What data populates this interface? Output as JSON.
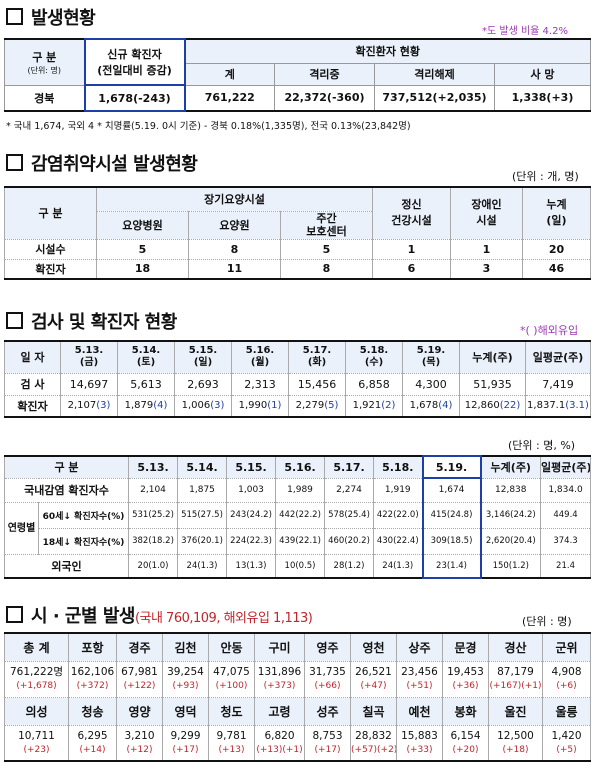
{
  "sec1": {
    "title": "발생현황",
    "ratio_note": "*도 발생 비율 4.2%",
    "h_gubun": "구  분",
    "h_unit": "(단위: 명)",
    "h_new": "신규 확진자",
    "h_new_sub": "(전일대비 증감)",
    "h_status": "확진환자 현황",
    "h_total": "계",
    "h_iso": "격리중",
    "h_release": "격리해제",
    "h_death": "사  망",
    "row_label": "경북",
    "row_new": "1,678(-243)",
    "row_total": "761,222",
    "row_iso": "22,372(-360)",
    "row_release": "737,512(+2,035)",
    "row_death": "1,338(+3)",
    "footnote": "* 국내 1,674, 국외 4  * 치명률(5.19. 0시 기준) - 경북 0.18%(1,335명), 전국 0.13%(23,842명)"
  },
  "sec2": {
    "title": "감염취약시설 발생현황",
    "unit": "(단위 : 개, 명)",
    "h_gubun": "구  분",
    "h_longterm": "장기요양시설",
    "h_hospital": "요양병원",
    "h_care": "요양원",
    "h_day": "주간\n보호센터",
    "h_mental": "정신\n건강시설",
    "h_disabled": "장애인\n시설",
    "h_cum": "누계\n(일)",
    "rows": [
      {
        "label": "시설수",
        "v": [
          "5",
          "8",
          "5",
          "1",
          "1",
          "20"
        ]
      },
      {
        "label": "확진자",
        "v": [
          "18",
          "11",
          "8",
          "6",
          "3",
          "46"
        ]
      }
    ]
  },
  "sec3": {
    "title": "검사 및 확진자 현황",
    "note": "*( )해외유입",
    "h_date": "일 자",
    "dates": [
      "5.13.\n(금)",
      "5.14.\n(토)",
      "5.15.\n(일)",
      "5.16.\n(월)",
      "5.17.\n(화)",
      "5.18.\n(수)",
      "5.19.\n(목)"
    ],
    "h_cum": "누계(주)",
    "h_avg": "일평균(주)",
    "test_label": "검 사",
    "tests": [
      "14,697",
      "5,613",
      "2,693",
      "2,313",
      "15,456",
      "6,858",
      "4,300",
      "51,935",
      "7,419"
    ],
    "conf_label": "확진자",
    "conf": [
      {
        "n": "2,107",
        "f": "(3)"
      },
      {
        "n": "1,879",
        "f": "(4)"
      },
      {
        "n": "1,006",
        "f": "(3)"
      },
      {
        "n": "1,990",
        "f": "(1)"
      },
      {
        "n": "2,279",
        "f": "(5)"
      },
      {
        "n": "1,921",
        "f": "(2)"
      },
      {
        "n": "1,678",
        "f": "(4)"
      },
      {
        "n": "12,860",
        "f": "(22)"
      },
      {
        "n": "1,837.1",
        "f": "(3.1)"
      }
    ]
  },
  "sec4": {
    "unit": "(단위 : 명, %)",
    "h_gubun": "구  분",
    "dates": [
      "5.13.",
      "5.14.",
      "5.15.",
      "5.16.",
      "5.17.",
      "5.18.",
      "5.19."
    ],
    "h_cum": "누계(주)",
    "h_avg": "일평균(주)",
    "r1_label": "국내감염 확진자수",
    "r1": [
      "2,104",
      "1,875",
      "1,003",
      "1,989",
      "2,274",
      "1,919",
      "1,674",
      "12,838",
      "1,834.0"
    ],
    "age_group": "연령별",
    "r2_label": "60세↓ 확진자수(%)",
    "r2": [
      "531(25.2)",
      "515(27.5)",
      "243(24.2)",
      "442(22.2)",
      "578(25.4)",
      "422(22.0)",
      "415(24.8)",
      "3,146(24.2)",
      "449.4"
    ],
    "r3_label": "18세↓ 확진자수(%)",
    "r3": [
      "382(18.2)",
      "376(20.1)",
      "224(22.3)",
      "439(22.1)",
      "460(20.2)",
      "430(22.4)",
      "309(18.5)",
      "2,620(20.4)",
      "374.3"
    ],
    "r4_label": "외국인",
    "r4": [
      "20(1.0)",
      "24(1.3)",
      "13(1.3)",
      "10(0.5)",
      "28(1.2)",
      "24(1.3)",
      "23(1.4)",
      "150(1.2)",
      "21.4"
    ]
  },
  "sec5": {
    "title": "시 · 군별 발생",
    "title_sub": "(국내 760,109, 해외유입 1,113)",
    "unit": "(단위 : 명)",
    "row1_names": [
      "총 계",
      "포항",
      "경주",
      "김천",
      "안동",
      "구미",
      "영주",
      "영천",
      "상주",
      "문경",
      "경산",
      "군위"
    ],
    "row1_vals": [
      "761,222명",
      "162,106",
      "67,981",
      "39,254",
      "47,075",
      "131,896",
      "31,735",
      "26,521",
      "23,456",
      "19,453",
      "87,179",
      "4,908"
    ],
    "row1_deltas": [
      "(+1,678)",
      "(+372)",
      "(+122)",
      "(+93)",
      "(+100)",
      "(+373)",
      "(+66)",
      "(+47)",
      "(+51)",
      "(+36)",
      "(+167)(+1)",
      "(+6)"
    ],
    "row2_names": [
      "의성",
      "청송",
      "영양",
      "영덕",
      "청도",
      "고령",
      "성주",
      "칠곡",
      "예천",
      "봉화",
      "울진",
      "울릉"
    ],
    "row2_vals": [
      "10,711",
      "6,295",
      "3,210",
      "9,299",
      "9,781",
      "6,820",
      "8,753",
      "28,832",
      "15,883",
      "6,154",
      "12,500",
      "1,420"
    ],
    "row2_deltas": [
      "(+23)",
      "(+14)",
      "(+12)",
      "(+17)",
      "(+13)",
      "(+13)(+1)",
      "(+17)",
      "(+57)(+2)",
      "(+33)",
      "(+20)",
      "(+18)",
      "(+5)"
    ]
  }
}
